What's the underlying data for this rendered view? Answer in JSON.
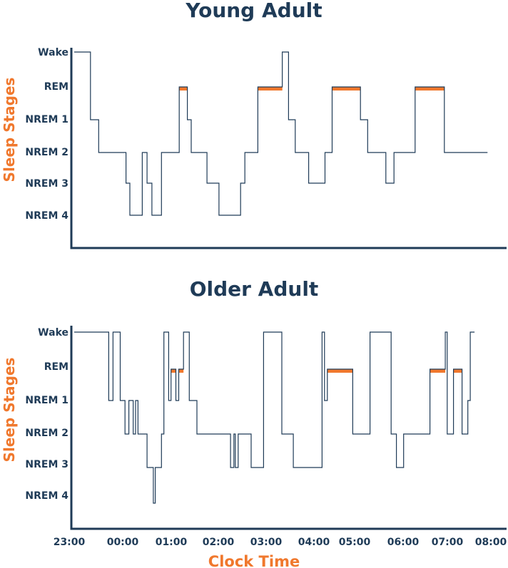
{
  "colors": {
    "text": "#1f3b57",
    "accent": "#f0782d",
    "line": "#1f3b57",
    "rem": "#f0782d"
  },
  "y_categories": [
    "Wake",
    "REM",
    "NREM 1",
    "NREM 2",
    "NREM 3",
    "NREM 4"
  ],
  "x_labels": [
    "23:00",
    "00:00",
    "01:00",
    "02:00",
    "03:00",
    "04:00",
    "05:00",
    "06:00",
    "07:00",
    "08:00"
  ],
  "x_axis_title": "Clock Time",
  "chart_data": [
    {
      "type": "line",
      "title": "Young Adult",
      "xlabel": "",
      "ylabel": "Sleep Stages",
      "x_unit": "hours after 23:00",
      "y_categories": [
        "Wake",
        "REM",
        "NREM 1",
        "NREM 2",
        "NREM 3",
        "NREM 4"
      ],
      "steps": [
        {
          "start": 0.0,
          "stage": "Wake"
        },
        {
          "start": 0.34,
          "stage": "NREM 1"
        },
        {
          "start": 0.51,
          "stage": "NREM 2"
        },
        {
          "start": 1.08,
          "stage": "NREM 3"
        },
        {
          "start": 1.16,
          "stage": "NREM 4"
        },
        {
          "start": 1.42,
          "stage": "NREM 2"
        },
        {
          "start": 1.52,
          "stage": "NREM 3"
        },
        {
          "start": 1.62,
          "stage": "NREM 4"
        },
        {
          "start": 1.82,
          "stage": "NREM 2"
        },
        {
          "start": 2.19,
          "stage": "REM"
        },
        {
          "start": 2.36,
          "stage": "NREM 1"
        },
        {
          "start": 2.44,
          "stage": "NREM 2"
        },
        {
          "start": 2.77,
          "stage": "NREM 3"
        },
        {
          "start": 3.02,
          "stage": "NREM 4"
        },
        {
          "start": 3.47,
          "stage": "NREM 3"
        },
        {
          "start": 3.56,
          "stage": "NREM 2"
        },
        {
          "start": 3.83,
          "stage": "REM"
        },
        {
          "start": 4.34,
          "stage": "Wake"
        },
        {
          "start": 4.47,
          "stage": "NREM 1"
        },
        {
          "start": 4.61,
          "stage": "NREM 2"
        },
        {
          "start": 4.89,
          "stage": "NREM 3"
        },
        {
          "start": 5.23,
          "stage": "NREM 2"
        },
        {
          "start": 5.38,
          "stage": "REM"
        },
        {
          "start": 5.97,
          "stage": "NREM 1"
        },
        {
          "start": 6.12,
          "stage": "NREM 2"
        },
        {
          "start": 6.5,
          "stage": "NREM 3"
        },
        {
          "start": 6.67,
          "stage": "NREM 2"
        },
        {
          "start": 7.11,
          "stage": "REM"
        },
        {
          "start": 7.72,
          "stage": "NREM 2"
        },
        {
          "start": 8.62,
          "stage": null
        }
      ]
    },
    {
      "type": "line",
      "title": "Older Adult",
      "xlabel": "Clock Time",
      "ylabel": "Sleep Stages",
      "x_unit": "hours after 23:00",
      "x_range": [
        "23:00",
        "08:00"
      ],
      "y_categories": [
        "Wake",
        "REM",
        "NREM 1",
        "NREM 2",
        "NREM 3",
        "NREM 4"
      ],
      "steps": [
        {
          "start": 0.0,
          "stage": "Wake"
        },
        {
          "start": 0.72,
          "stage": "NREM 1"
        },
        {
          "start": 0.81,
          "stage": "Wake"
        },
        {
          "start": 0.96,
          "stage": "NREM 1"
        },
        {
          "start": 1.06,
          "stage": "NREM 2"
        },
        {
          "start": 1.14,
          "stage": "NREM 1"
        },
        {
          "start": 1.23,
          "stage": "NREM 2"
        },
        {
          "start": 1.28,
          "stage": "NREM 1"
        },
        {
          "start": 1.33,
          "stage": "NREM 2"
        },
        {
          "start": 1.52,
          "stage": "NREM 3"
        },
        {
          "start": 1.65,
          "stage": "NREM 4"
        },
        {
          "start": 1.69,
          "stage": "NREM 3"
        },
        {
          "start": 1.82,
          "stage": "NREM 2"
        },
        {
          "start": 1.87,
          "stage": "Wake"
        },
        {
          "start": 1.97,
          "stage": "NREM 1"
        },
        {
          "start": 2.02,
          "stage": "REM"
        },
        {
          "start": 2.12,
          "stage": "NREM 1"
        },
        {
          "start": 2.18,
          "stage": "REM"
        },
        {
          "start": 2.28,
          "stage": "Wake"
        },
        {
          "start": 2.4,
          "stage": "NREM 1"
        },
        {
          "start": 2.56,
          "stage": "NREM 2"
        },
        {
          "start": 3.26,
          "stage": "NREM 3"
        },
        {
          "start": 3.33,
          "stage": "NREM 2"
        },
        {
          "start": 3.36,
          "stage": "NREM 3"
        },
        {
          "start": 3.42,
          "stage": "NREM 2"
        },
        {
          "start": 3.69,
          "stage": "NREM 3"
        },
        {
          "start": 3.95,
          "stage": "Wake"
        },
        {
          "start": 4.33,
          "stage": "NREM 2"
        },
        {
          "start": 4.57,
          "stage": "NREM 3"
        },
        {
          "start": 5.17,
          "stage": "Wake"
        },
        {
          "start": 5.22,
          "stage": "NREM 1"
        },
        {
          "start": 5.28,
          "stage": "REM"
        },
        {
          "start": 5.81,
          "stage": "NREM 2"
        },
        {
          "start": 6.17,
          "stage": "Wake"
        },
        {
          "start": 6.61,
          "stage": "NREM 2"
        },
        {
          "start": 6.72,
          "stage": "NREM 3"
        },
        {
          "start": 6.87,
          "stage": "NREM 2"
        },
        {
          "start": 7.42,
          "stage": "REM"
        },
        {
          "start": 7.74,
          "stage": "Wake"
        },
        {
          "start": 7.78,
          "stage": "NREM 2"
        },
        {
          "start": 7.91,
          "stage": "REM"
        },
        {
          "start": 8.09,
          "stage": "NREM 2"
        },
        {
          "start": 8.21,
          "stage": "NREM 1"
        },
        {
          "start": 8.26,
          "stage": "Wake"
        },
        {
          "start": 8.35,
          "stage": null
        }
      ]
    }
  ]
}
